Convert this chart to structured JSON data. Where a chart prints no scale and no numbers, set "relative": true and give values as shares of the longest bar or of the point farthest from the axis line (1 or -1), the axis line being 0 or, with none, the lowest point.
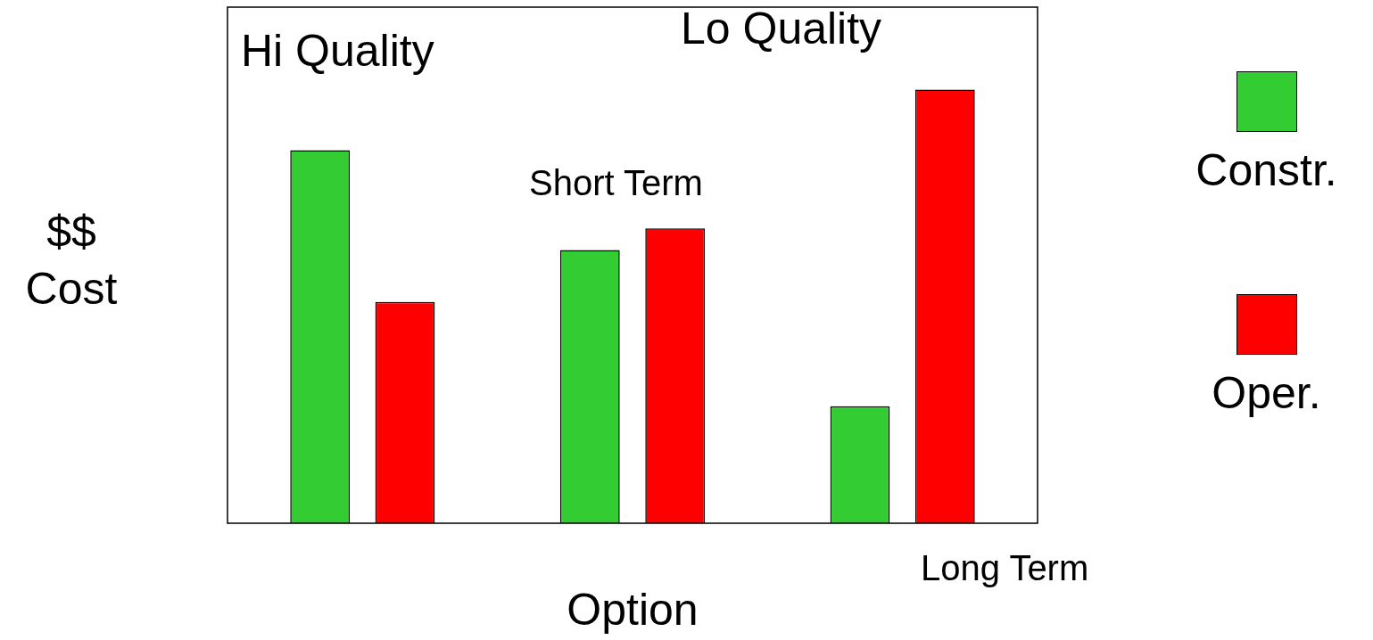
{
  "chart_data": {
    "type": "bar",
    "relative": true,
    "xlabel": "Option",
    "ylabel": "$$ Cost",
    "categories": [
      null,
      null,
      null
    ],
    "series": [
      {
        "name": "Constr.",
        "color": "#33cc33",
        "values": [
          0.86,
          0.63,
          0.27
        ]
      },
      {
        "name": "Oper.",
        "color": "#ff0000",
        "values": [
          0.51,
          0.68,
          1
        ]
      }
    ],
    "annotations": [
      "Hi Quality",
      "Lo Quality",
      "Short Term",
      "Long Term"
    ],
    "legend": "right",
    "grid": false
  }
}
